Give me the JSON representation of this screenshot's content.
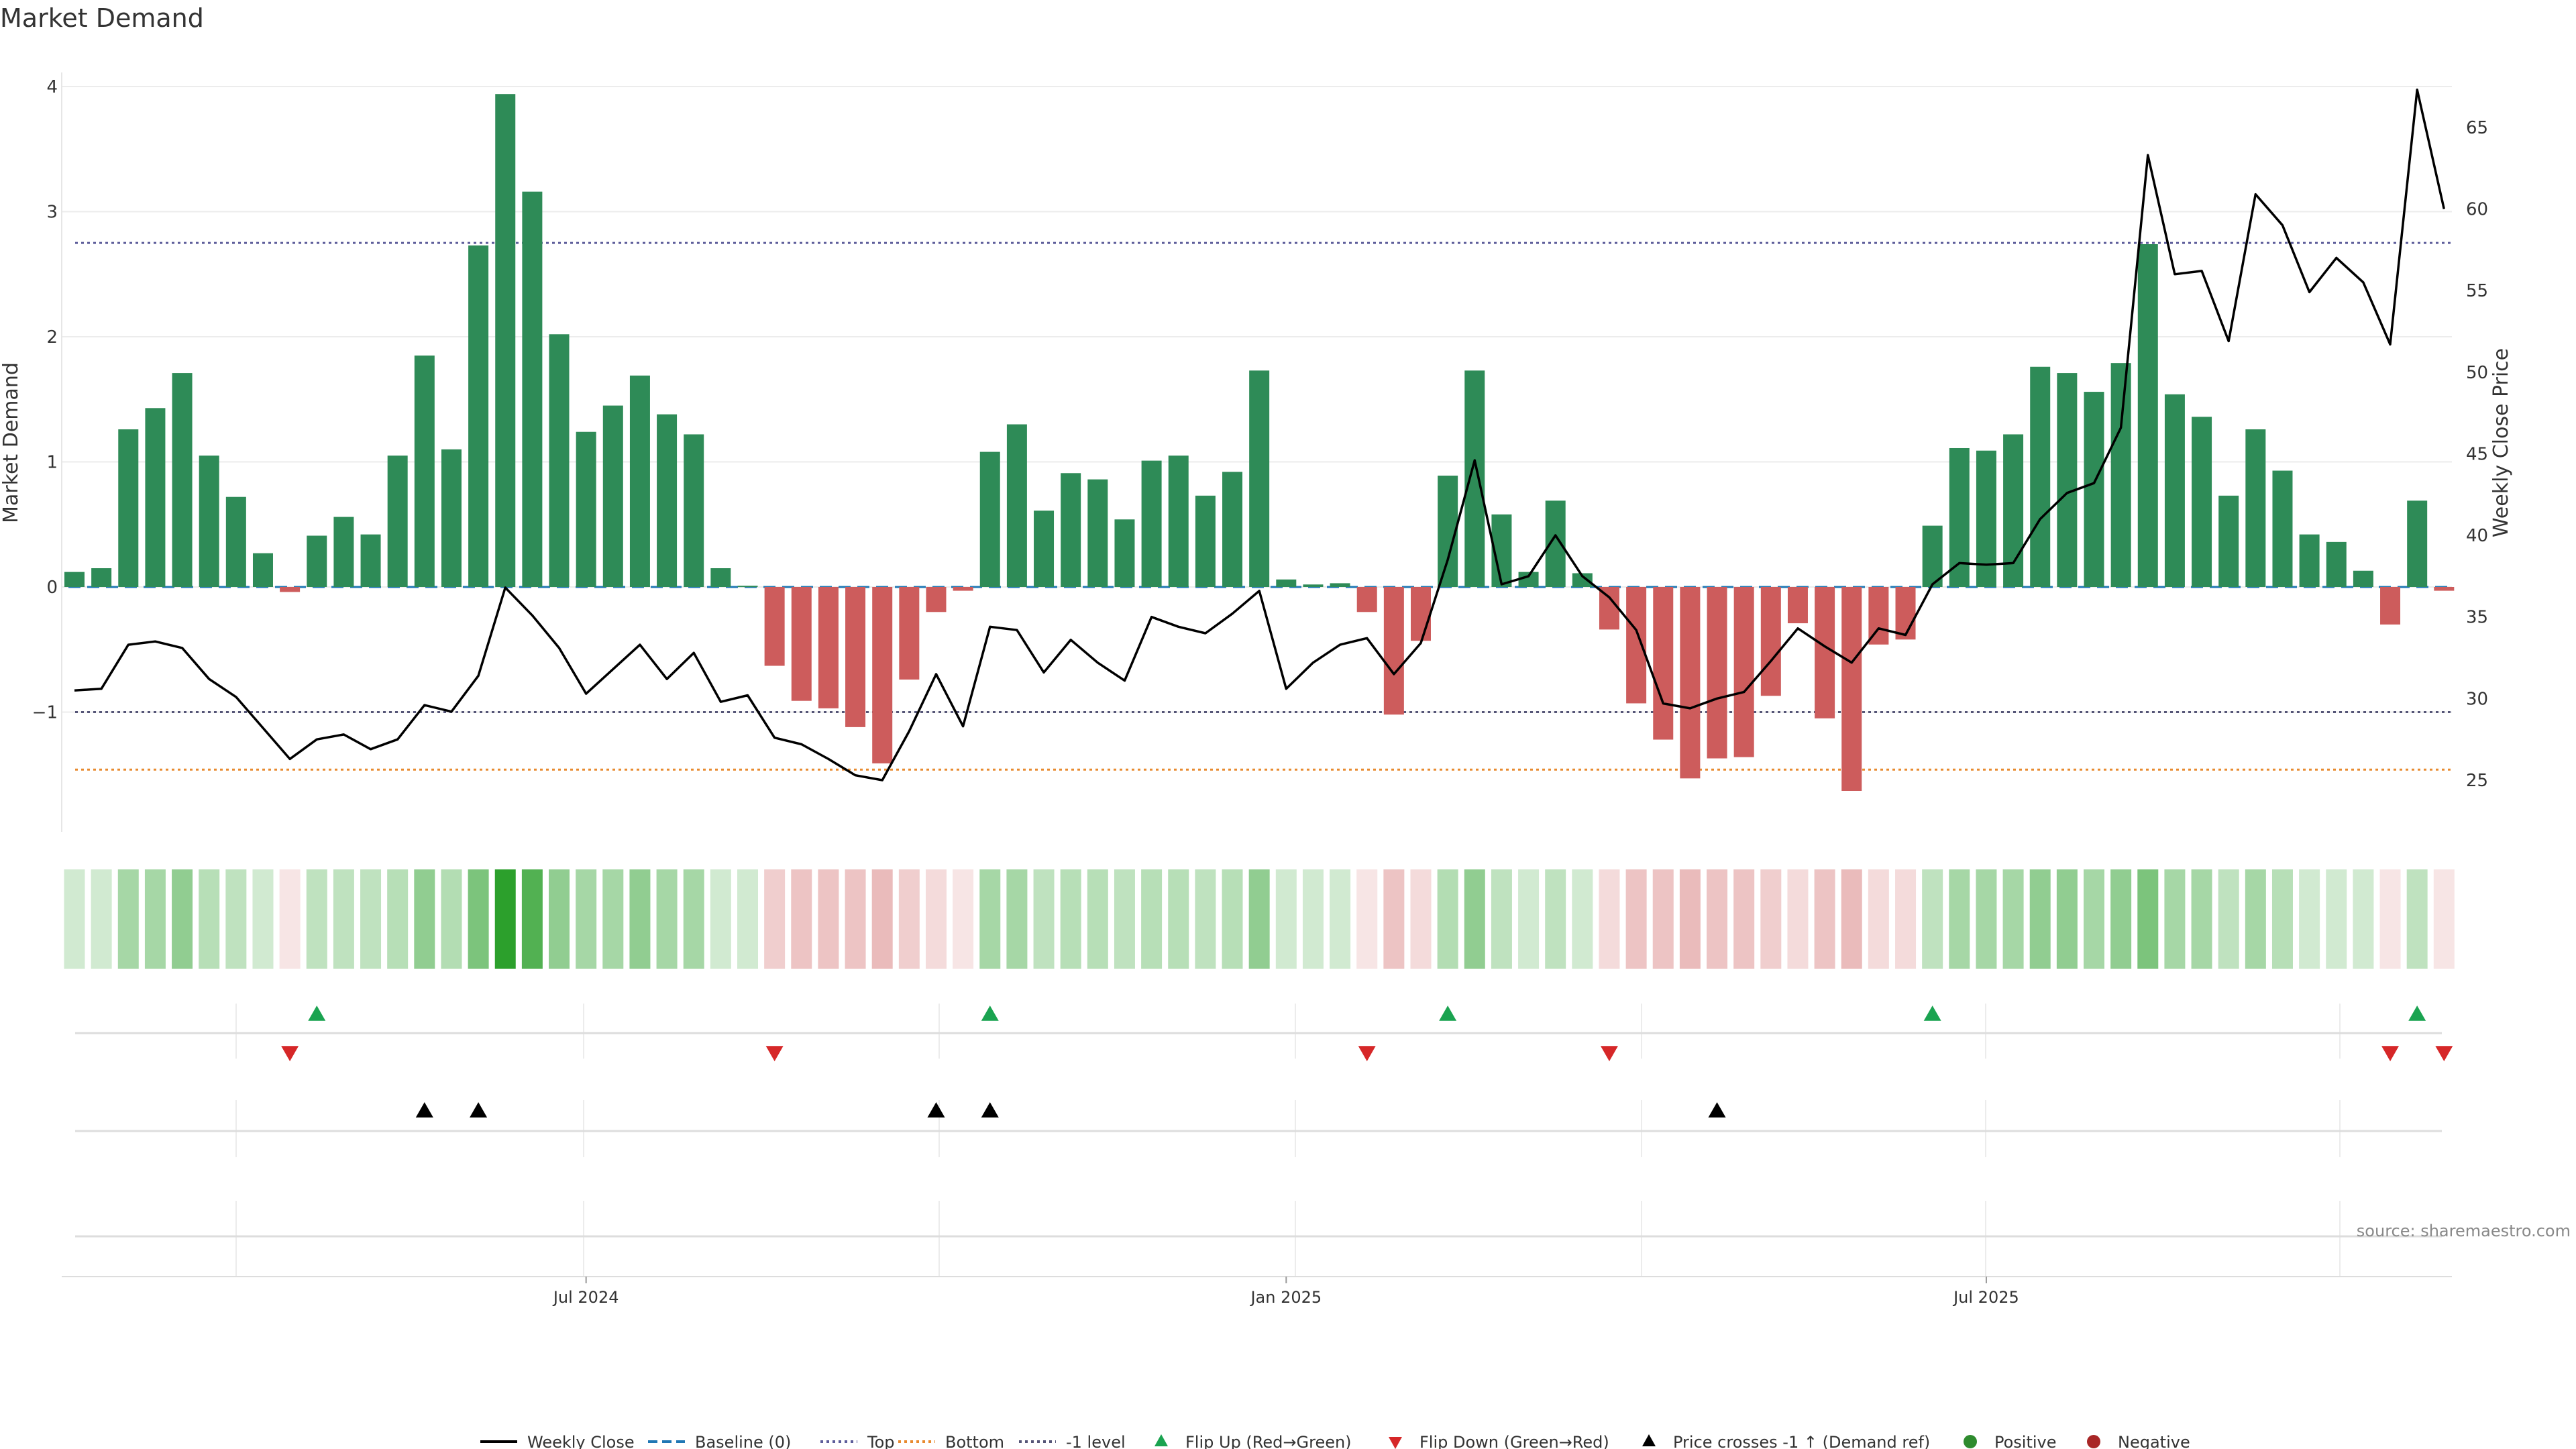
{
  "chart_data": {
    "type": "bar",
    "title": "Market Demand",
    "ylabel_left": "Market Demand",
    "ylabel_right": "Weekly Close Price",
    "left_ylim": [
      -1.95,
      4.4
    ],
    "right_ylim": [
      22,
      69
    ],
    "left_ticks": [
      "−1",
      "0",
      "1",
      "2",
      "3",
      "4"
    ],
    "left_tick_values": [
      -1,
      0,
      1,
      2,
      3,
      4
    ],
    "right_ticks": [
      "25",
      "30",
      "35",
      "40",
      "45",
      "50",
      "55",
      "60",
      "65"
    ],
    "right_tick_values": [
      25,
      30,
      35,
      40,
      45,
      50,
      55,
      60,
      65
    ],
    "x_ticks": [
      "Jul 2024",
      "Jan 2025",
      "Jul 2025"
    ],
    "x_tick_week_index": [
      19,
      45,
      71
    ],
    "reference_lines": {
      "baseline": 0,
      "top": 2.75,
      "minus_one": -1,
      "bottom": -1.46
    },
    "demand": [
      0.12,
      0.15,
      1.26,
      1.43,
      1.71,
      1.05,
      0.72,
      0.27,
      -0.04,
      0.41,
      0.56,
      0.42,
      1.05,
      1.85,
      1.1,
      2.73,
      3.94,
      3.16,
      2.02,
      1.24,
      1.45,
      1.69,
      1.38,
      1.22,
      0.15,
      0.01,
      -0.63,
      -0.91,
      -0.97,
      -1.12,
      -1.41,
      -0.74,
      -0.2,
      -0.03,
      1.08,
      1.3,
      0.61,
      0.91,
      0.86,
      0.54,
      1.01,
      1.05,
      0.73,
      0.92,
      1.73,
      0.06,
      0.02,
      0.03,
      -0.2,
      -1.02,
      -0.43,
      0.89,
      1.73,
      0.58,
      0.12,
      0.69,
      0.11,
      -0.34,
      -0.93,
      -1.22,
      -1.53,
      -1.37,
      -1.36,
      -0.87,
      -0.29,
      -1.05,
      -1.63,
      -0.46,
      -0.42,
      0.49,
      1.11,
      1.09,
      1.22,
      1.76,
      1.71,
      1.56,
      1.79,
      2.74,
      1.54,
      1.36,
      0.73,
      1.26,
      0.93,
      0.42,
      0.36,
      0.13,
      -0.3,
      0.69,
      -0.03
    ],
    "series": [
      {
        "name": "Weekly Close",
        "values": [
          30.5,
          30.6,
          33.3,
          33.5,
          33.1,
          31.2,
          30.1,
          28.2,
          26.3,
          27.5,
          27.8,
          26.9,
          27.5,
          29.6,
          29.2,
          31.4,
          36.8,
          35.1,
          33.1,
          30.3,
          31.8,
          33.3,
          31.2,
          32.8,
          29.8,
          30.2,
          27.6,
          27.2,
          26.3,
          25.3,
          25.0,
          28.0,
          31.5,
          28.3,
          34.4,
          34.2,
          31.6,
          33.6,
          32.2,
          31.1,
          35.0,
          34.4,
          34.0,
          35.2,
          36.6,
          30.6,
          32.2,
          33.3,
          33.7,
          31.5,
          33.4,
          38.5,
          44.6,
          37.0,
          37.5,
          40.0,
          37.5,
          36.2,
          34.2,
          29.7,
          29.4,
          30.0,
          30.4,
          32.3,
          34.3,
          33.2,
          32.2,
          34.3,
          33.9,
          37.0,
          38.3,
          38.2,
          38.3,
          41.0,
          42.6,
          43.2,
          46.6,
          63.3,
          56.0,
          56.2,
          51.9,
          60.9,
          59.0,
          54.9,
          57.0,
          55.5,
          51.7,
          67.3,
          60.0
        ]
      }
    ],
    "heat_strip_opacity": [
      0.22,
      0.22,
      0.42,
      0.42,
      0.52,
      0.34,
      0.3,
      0.22,
      0.16,
      0.3,
      0.3,
      0.3,
      0.34,
      0.52,
      0.36,
      0.62,
      1.0,
      0.82,
      0.52,
      0.42,
      0.42,
      0.52,
      0.42,
      0.42,
      0.22,
      0.22,
      0.3,
      0.36,
      0.36,
      0.36,
      0.42,
      0.3,
      0.22,
      0.16,
      0.42,
      0.42,
      0.3,
      0.34,
      0.34,
      0.3,
      0.34,
      0.34,
      0.3,
      0.34,
      0.52,
      0.22,
      0.22,
      0.22,
      0.16,
      0.36,
      0.22,
      0.36,
      0.52,
      0.3,
      0.22,
      0.3,
      0.22,
      0.22,
      0.36,
      0.36,
      0.42,
      0.36,
      0.36,
      0.3,
      0.22,
      0.36,
      0.42,
      0.22,
      0.22,
      0.3,
      0.42,
      0.42,
      0.42,
      0.52,
      0.52,
      0.42,
      0.52,
      0.62,
      0.42,
      0.42,
      0.3,
      0.42,
      0.34,
      0.22,
      0.22,
      0.22,
      0.16,
      0.3,
      0.16
    ],
    "flip_up_weeks": [
      9,
      34,
      51,
      69,
      87
    ],
    "flip_down_weeks": [
      8,
      26,
      48,
      57,
      86,
      88
    ],
    "price_cross_weeks": [
      13,
      15,
      32,
      34,
      61
    ],
    "colors": {
      "positive": "#2e8b57",
      "negative": "#cd5c5c",
      "price": "#000000",
      "baseline": "#1f77b4",
      "top": "#5d5d9a",
      "bottom": "#e88a2f",
      "minus_one": "#555577",
      "flip_up": "#1aa350",
      "flip_down": "#d62728",
      "positive_dot": "#2e8b2e",
      "negative_dot": "#a82626"
    },
    "legend": [
      "Weekly Close",
      "Baseline (0)",
      "Top",
      "Bottom",
      "-1 level",
      "Flip Up (Red→Green)",
      "Flip Down (Green→Red)",
      "Price crosses -1 ↑ (Demand ref)",
      "Positive",
      "Negative"
    ],
    "source": "source: sharemaestro.com"
  }
}
